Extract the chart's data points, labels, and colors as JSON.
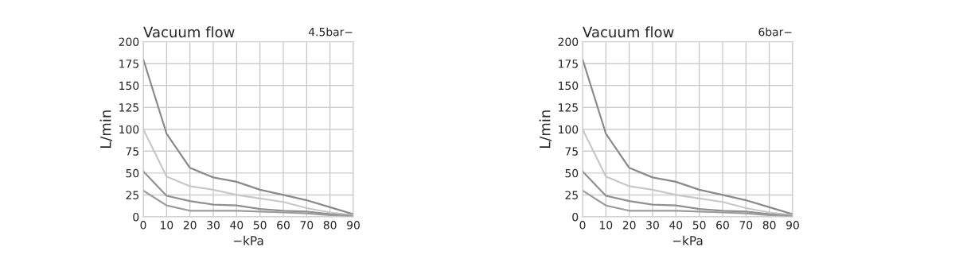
{
  "chart_data": [
    {
      "type": "line",
      "title": "Vacuum flow",
      "annotations": [
        "4.5bar−"
      ],
      "xlabel": "−kPa",
      "ylabel": "L/min",
      "x": [
        0,
        10,
        20,
        30,
        40,
        50,
        60,
        70,
        80,
        90
      ],
      "series": [
        {
          "color": "#8a8a8a",
          "values": [
            180,
            95,
            56,
            45,
            40,
            31,
            25,
            19,
            11,
            3
          ]
        },
        {
          "color": "#c8c8c8",
          "values": [
            100,
            46,
            35,
            31,
            25,
            21,
            17,
            10,
            5,
            2
          ]
        },
        {
          "color": "#909090",
          "values": [
            52,
            24,
            18,
            14,
            13,
            9,
            7,
            6,
            3,
            1
          ]
        },
        {
          "color": "#9c9c9c",
          "values": [
            30,
            13,
            7,
            7,
            7,
            6,
            5,
            4,
            2,
            1
          ]
        }
      ],
      "xlim": [
        0,
        90
      ],
      "xticks": [
        0,
        10,
        20,
        30,
        40,
        50,
        60,
        70,
        80,
        90
      ],
      "ylim": [
        0,
        200
      ],
      "yticks": [
        0,
        25,
        50,
        75,
        100,
        125,
        150,
        175,
        200
      ],
      "grid": true
    },
    {
      "type": "line",
      "title": "Vacuum flow",
      "annotations": [
        "6bar−"
      ],
      "xlabel": "−kPa",
      "ylabel": "L/min",
      "x": [
        0,
        10,
        20,
        30,
        40,
        50,
        60,
        70,
        80,
        90
      ],
      "series": [
        {
          "color": "#8a8a8a",
          "values": [
            180,
            95,
            56,
            45,
            40,
            31,
            25,
            19,
            11,
            3
          ]
        },
        {
          "color": "#c8c8c8",
          "values": [
            100,
            46,
            35,
            31,
            25,
            21,
            17,
            10,
            5,
            2
          ]
        },
        {
          "color": "#909090",
          "values": [
            52,
            24,
            18,
            14,
            13,
            9,
            7,
            6,
            3,
            1
          ]
        },
        {
          "color": "#9c9c9c",
          "values": [
            30,
            13,
            7,
            7,
            7,
            6,
            5,
            4,
            2,
            1
          ]
        }
      ],
      "xlim": [
        0,
        90
      ],
      "xticks": [
        0,
        10,
        20,
        30,
        40,
        50,
        60,
        70,
        80,
        90
      ],
      "ylim": [
        0,
        200
      ],
      "yticks": [
        0,
        25,
        50,
        75,
        100,
        125,
        150,
        175,
        200
      ],
      "grid": true
    }
  ]
}
